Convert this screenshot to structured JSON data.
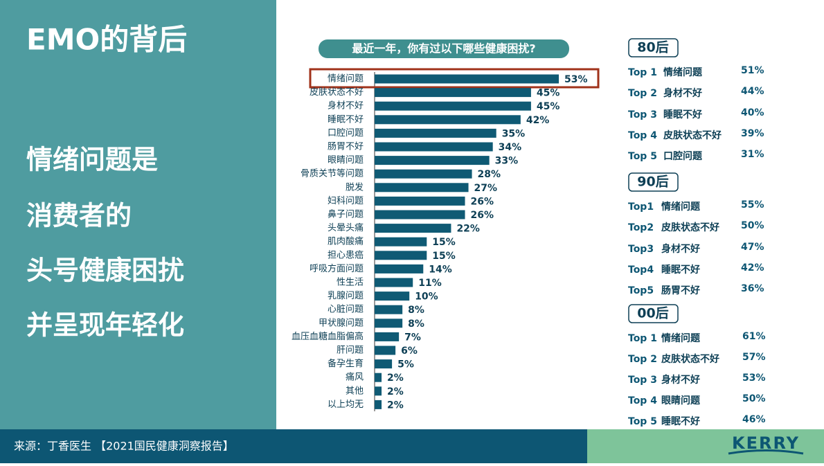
{
  "title": "EMO的背后",
  "headline": [
    "情绪问题是",
    "消费者的",
    "头号健康困扰",
    "并呈现年轻化"
  ],
  "chart_data": {
    "type": "bar",
    "orientation": "horizontal",
    "title": "最近一年，你有过以下哪些健康困扰?",
    "categories": [
      "情绪问题",
      "皮肤状态不好",
      "身材不好",
      "睡眠不好",
      "口腔问题",
      "肠胃不好",
      "眼睛问题",
      "骨质关节等问题",
      "脱发",
      "妇科问题",
      "鼻子问题",
      "头晕头痛",
      "肌肉酸痛",
      "担心患癌",
      "呼吸方面问题",
      "性生活",
      "乳腺问题",
      "心脏问题",
      "甲状腺问题",
      "血压血糖血脂偏高",
      "肝问题",
      "备孕生育",
      "痛风",
      "其他",
      "以上均无"
    ],
    "values": [
      53,
      45,
      45,
      42,
      35,
      34,
      33,
      28,
      27,
      26,
      26,
      22,
      15,
      15,
      14,
      11,
      10,
      8,
      8,
      7,
      6,
      5,
      2,
      2,
      2
    ],
    "value_labels": [
      "53%",
      "45%",
      "45%",
      "42%",
      "35%",
      "34%",
      "33%",
      "28%",
      "27%",
      "26%",
      "26%",
      "22%",
      "15%",
      "15%",
      "14%",
      "11%",
      "10%",
      "8%",
      "8%",
      "7%",
      "6%",
      "5%",
      "2%",
      "2%",
      "2%"
    ],
    "color": "#0f5a74"
  },
  "rankings": [
    {
      "group": "80后",
      "items": [
        {
          "rank": "Top 1",
          "name": "情绪问题",
          "value": "51%"
        },
        {
          "rank": "Top 2",
          "name": "身材不好",
          "value": "44%"
        },
        {
          "rank": "Top 3",
          "name": "睡眠不好",
          "value": "40%"
        },
        {
          "rank": "Top 4",
          "name": "皮肤状态不好",
          "value": "39%"
        },
        {
          "rank": "Top 5",
          "name": "口腔问题",
          "value": "31%"
        }
      ]
    },
    {
      "group": "90后",
      "items": [
        {
          "rank": "Top1",
          "name": "情绪问题",
          "value": "55%"
        },
        {
          "rank": "Top2",
          "name": "皮肤状态不好",
          "value": "50%"
        },
        {
          "rank": "Top3",
          "name": "身材不好",
          "value": "47%"
        },
        {
          "rank": "Top4",
          "name": "睡眠不好",
          "value": "42%"
        },
        {
          "rank": "Top5",
          "name": "肠胃不好",
          "value": "36%"
        }
      ]
    },
    {
      "group": "00后",
      "items": [
        {
          "rank": "Top 1",
          "name": "情绪问题",
          "value": "61%"
        },
        {
          "rank": "Top 2",
          "name": "皮肤状态不好",
          "value": "57%"
        },
        {
          "rank": "Top 3",
          "name": "身材不好",
          "value": "53%"
        },
        {
          "rank": "Top 4",
          "name": "眼睛问题",
          "value": "50%"
        },
        {
          "rank": "Top 5",
          "name": "睡眠不好",
          "value": "46%"
        }
      ]
    }
  ],
  "source": "来源：丁香医生 【2021国民健康洞察报告】",
  "logo": "KERRY"
}
